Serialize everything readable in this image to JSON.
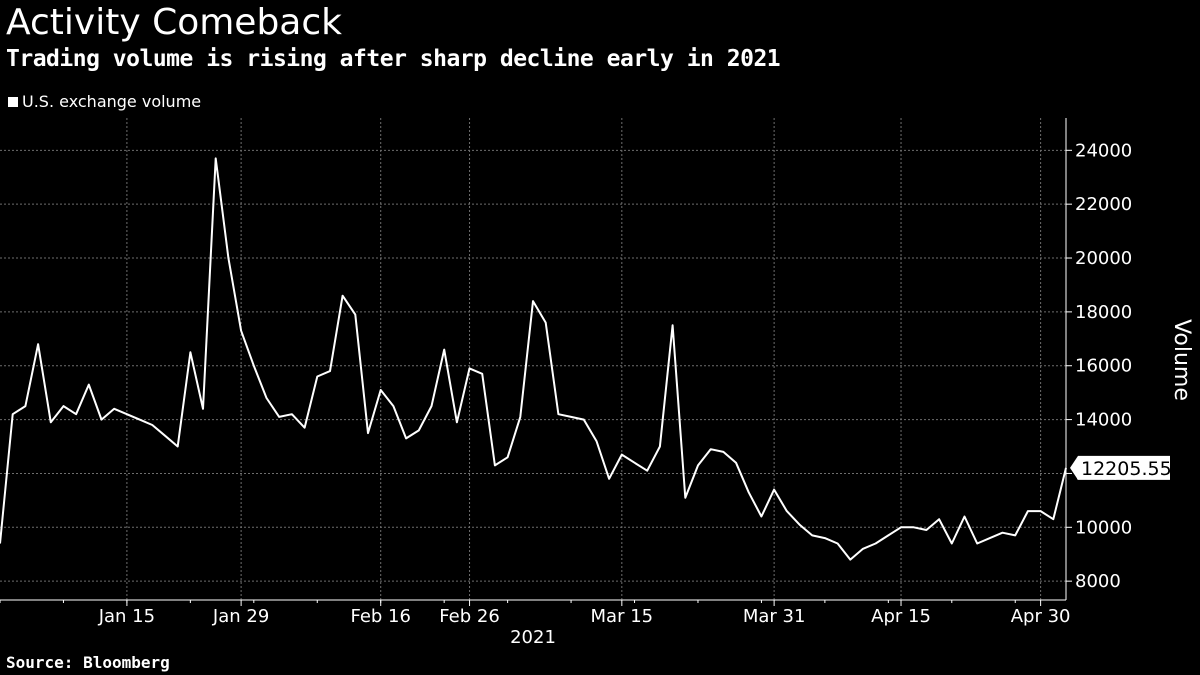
{
  "title": "Activity Comeback",
  "subtitle": "Trading volume is rising after sharp decline early in 2021",
  "source": "Source: Bloomberg",
  "colors": {
    "background": "#000000",
    "line": "#ffffff",
    "grid": "#6e6e6e",
    "axis": "#ffffff"
  },
  "chart_data": {
    "type": "line",
    "title": "Activity Comeback",
    "subtitle": "Trading volume is rising after sharp decline early in 2021",
    "xlabel": "2021",
    "ylabel": "Volume",
    "ylim": [
      7300,
      25200
    ],
    "yticks": [
      8000,
      10000,
      12000,
      14000,
      16000,
      18000,
      20000,
      22000,
      24000
    ],
    "ytick_labels": [
      "8000",
      "10000",
      "12000",
      "14000",
      "16000",
      "18000",
      "20000",
      "22000",
      "24000"
    ],
    "xticks": [
      {
        "index": 10,
        "label": "Jan 15"
      },
      {
        "index": 19,
        "label": "Jan 29"
      },
      {
        "index": 30,
        "label": "Feb 16"
      },
      {
        "index": 37,
        "label": "Feb 26"
      },
      {
        "index": 49,
        "label": "Mar 15"
      },
      {
        "index": 61,
        "label": "Mar 31"
      },
      {
        "index": 71,
        "label": "Apr 15"
      },
      {
        "index": 82,
        "label": "Apr 30"
      }
    ],
    "legend": [
      "U.S. exchange volume"
    ],
    "grid": true,
    "last_value_label": "12205.55",
    "series": [
      {
        "name": "U.S. exchange volume",
        "values": [
          9400,
          14200,
          14500,
          16800,
          13900,
          14500,
          14200,
          15300,
          14000,
          14400,
          14200,
          14000,
          13800,
          13400,
          13000,
          16500,
          14400,
          23700,
          20000,
          17300,
          16000,
          14800,
          14100,
          14200,
          13700,
          15600,
          15800,
          18600,
          17900,
          13500,
          15100,
          14500,
          13300,
          13600,
          14500,
          16600,
          13900,
          15900,
          15700,
          12300,
          12600,
          14100,
          18400,
          17600,
          14200,
          14100,
          14000,
          13200,
          11800,
          12700,
          12400,
          12100,
          13000,
          17500,
          11100,
          12300,
          12900,
          12800,
          12400,
          11300,
          10400,
          11400,
          10600,
          10100,
          9700,
          9600,
          9400,
          8800,
          9200,
          9400,
          9700,
          10000,
          10000,
          9900,
          10300,
          9400,
          10400,
          9400,
          9600,
          9800,
          9700,
          10600,
          10600,
          10300,
          12205.55
        ]
      }
    ]
  }
}
